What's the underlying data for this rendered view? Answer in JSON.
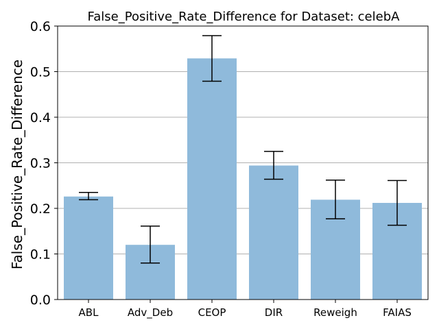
{
  "chart_data": {
    "type": "bar",
    "title": "False_Positive_Rate_Difference for Dataset: celebA",
    "xlabel": "",
    "ylabel": "False_Positive_Rate_Difference",
    "categories": [
      "ABL",
      "Adv_Deb",
      "CEOP",
      "DIR",
      "Reweigh",
      "FAIAS"
    ],
    "values": [
      0.226,
      0.12,
      0.529,
      0.294,
      0.219,
      0.212
    ],
    "error_low": [
      0.219,
      0.08,
      0.479,
      0.264,
      0.177,
      0.163
    ],
    "error_high": [
      0.235,
      0.161,
      0.579,
      0.325,
      0.262,
      0.261
    ],
    "ylim": [
      0,
      0.6
    ],
    "yticks": [
      "0.0",
      "0.1",
      "0.2",
      "0.3",
      "0.4",
      "0.5",
      "0.6"
    ],
    "grid": "horizontal",
    "bar_color": "#8fbadb",
    "bar_opacity": 1
  }
}
